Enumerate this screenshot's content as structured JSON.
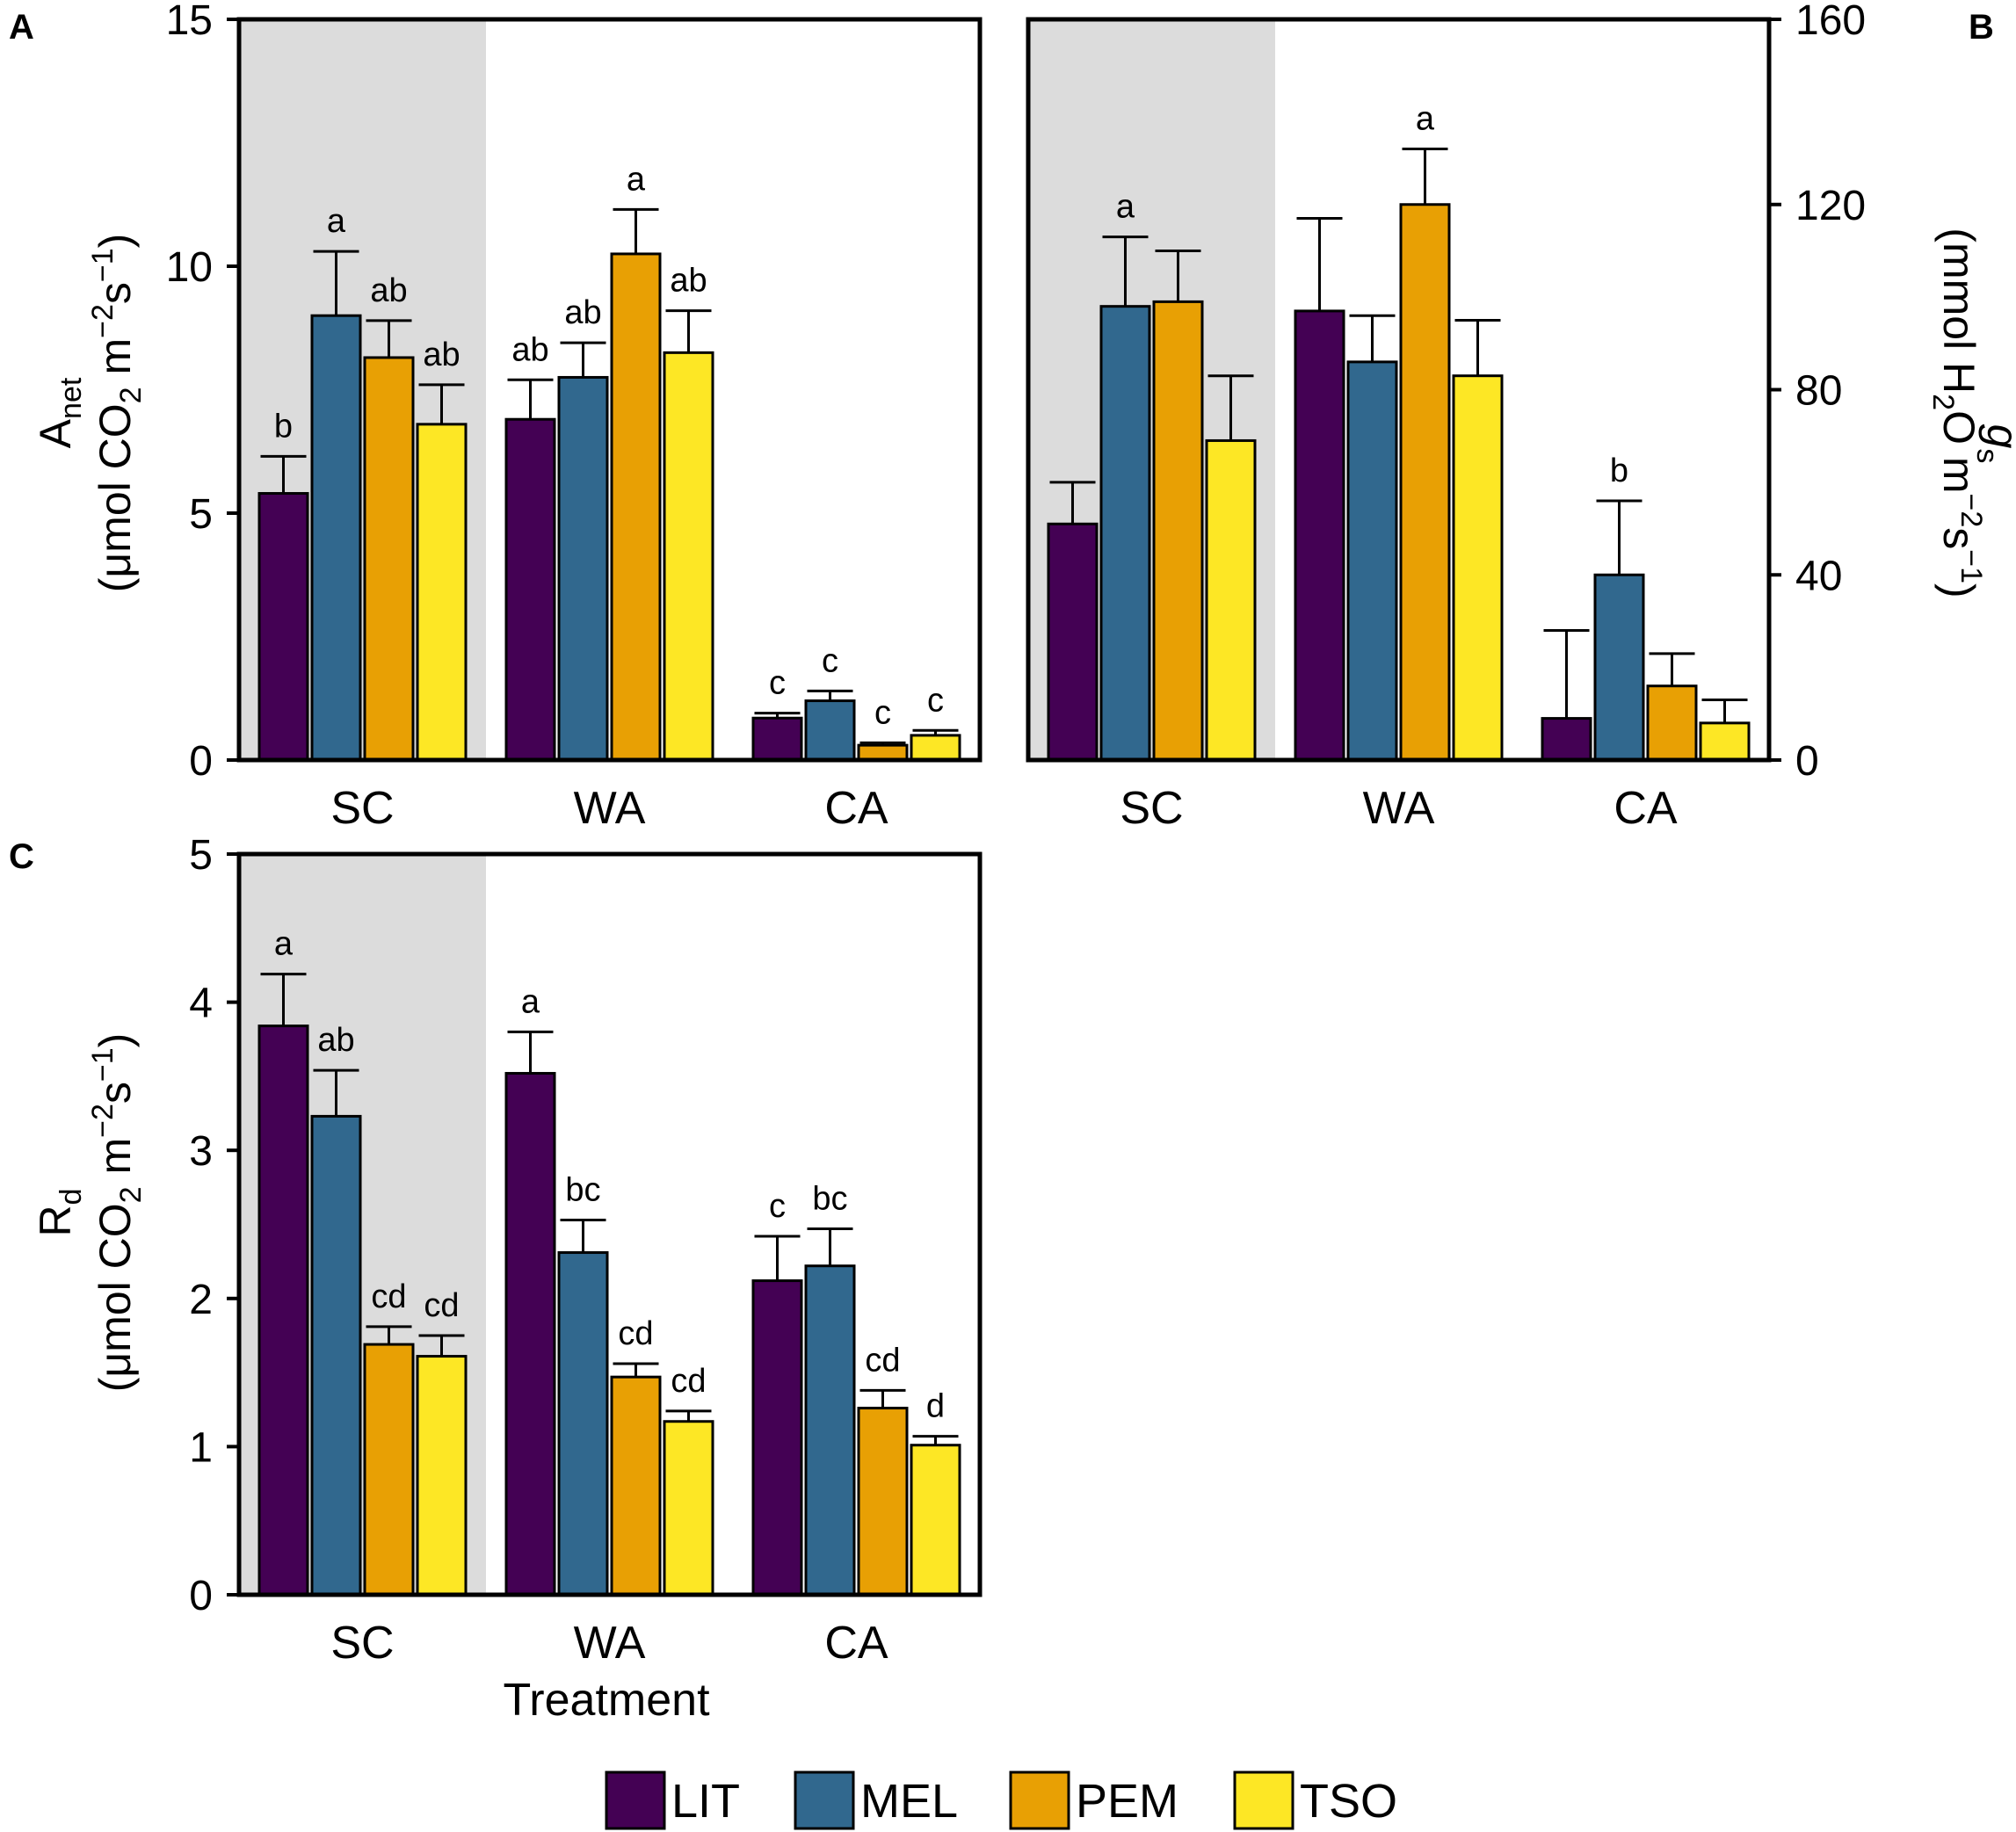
{
  "legend": [
    {
      "label": "LIT",
      "color": "#440154"
    },
    {
      "label": "MEL",
      "color": "#31688e"
    },
    {
      "label": "PEM",
      "color": "#e8a004"
    },
    {
      "label": "TSO",
      "color": "#fde725"
    }
  ],
  "shade_color": "#dcdcdc",
  "x_title": "Treatment",
  "chart_data": [
    {
      "panel": "A",
      "type": "bar",
      "categories": [
        "SC",
        "WA",
        "CA"
      ],
      "shaded_category": "SC",
      "ylim": [
        0,
        15
      ],
      "yticks": [
        "0",
        "5",
        "10",
        "15"
      ],
      "ylabel": {
        "main": "A",
        "sub": "net",
        "units": [
          "(μmol CO",
          "2",
          " m",
          "−2",
          "s",
          "−1",
          ")"
        ]
      },
      "series": [
        {
          "name": "LIT",
          "values": [
            5.4,
            6.9,
            0.85
          ],
          "errors": [
            0.75,
            0.8,
            0.1
          ],
          "letters": [
            "b",
            "ab",
            "c"
          ]
        },
        {
          "name": "MEL",
          "values": [
            9.0,
            7.75,
            1.2
          ],
          "errors": [
            1.3,
            0.7,
            0.2
          ],
          "letters": [
            "a",
            "ab",
            "c"
          ]
        },
        {
          "name": "PEM",
          "values": [
            8.15,
            10.25,
            0.3
          ],
          "errors": [
            0.75,
            0.9,
            0.05
          ],
          "letters": [
            "ab",
            "a",
            "c"
          ]
        },
        {
          "name": "TSO",
          "values": [
            6.8,
            8.25,
            0.5
          ],
          "errors": [
            0.8,
            0.85,
            0.1
          ],
          "letters": [
            "ab",
            "ab",
            "c"
          ]
        }
      ]
    },
    {
      "panel": "B",
      "type": "bar",
      "categories": [
        "SC",
        "WA",
        "CA"
      ],
      "shaded_category": "SC",
      "ylim": [
        0,
        160
      ],
      "yticks": [
        "0",
        "40",
        "80",
        "120",
        "160"
      ],
      "ylabel": {
        "main": "g",
        "sub": "s",
        "units": [
          "(mmol H",
          "2",
          "O m",
          "−2",
          "s",
          "−1",
          ")"
        ]
      },
      "series": [
        {
          "name": "LIT",
          "values": [
            51,
            97,
            9
          ],
          "errors": [
            9,
            20,
            19
          ],
          "letters": [
            "",
            "",
            ""
          ]
        },
        {
          "name": "MEL",
          "values": [
            98,
            86,
            40
          ],
          "errors": [
            15,
            10,
            16
          ],
          "letters": [
            "a",
            "",
            "b"
          ]
        },
        {
          "name": "PEM",
          "values": [
            99,
            120,
            16
          ],
          "errors": [
            11,
            12,
            7
          ],
          "letters": [
            "",
            "a",
            ""
          ]
        },
        {
          "name": "TSO",
          "values": [
            69,
            83,
            8
          ],
          "errors": [
            14,
            12,
            5
          ],
          "letters": [
            "",
            "",
            ""
          ]
        }
      ]
    },
    {
      "panel": "C",
      "type": "bar",
      "categories": [
        "SC",
        "WA",
        "CA"
      ],
      "shaded_category": "SC",
      "ylim": [
        0,
        5
      ],
      "yticks": [
        "0",
        "1",
        "2",
        "3",
        "4",
        "5"
      ],
      "ylabel": {
        "main": "R",
        "sub": "d",
        "units": [
          "(μmol CO",
          "2",
          " m",
          "−2",
          "s",
          "−1",
          ")"
        ]
      },
      "series": [
        {
          "name": "LIT",
          "values": [
            3.84,
            3.52,
            2.12
          ],
          "errors": [
            0.35,
            0.28,
            0.3
          ],
          "letters": [
            "a",
            "a",
            "c"
          ]
        },
        {
          "name": "MEL",
          "values": [
            3.23,
            2.31,
            2.22
          ],
          "errors": [
            0.31,
            0.22,
            0.25
          ],
          "letters": [
            "ab",
            "bc",
            "bc"
          ]
        },
        {
          "name": "PEM",
          "values": [
            1.69,
            1.47,
            1.26
          ],
          "errors": [
            0.12,
            0.09,
            0.12
          ],
          "letters": [
            "cd",
            "cd",
            "cd"
          ]
        },
        {
          "name": "TSO",
          "values": [
            1.61,
            1.17,
            1.01
          ],
          "errors": [
            0.14,
            0.07,
            0.06
          ],
          "letters": [
            "cd",
            "cd",
            "d"
          ]
        }
      ]
    }
  ]
}
